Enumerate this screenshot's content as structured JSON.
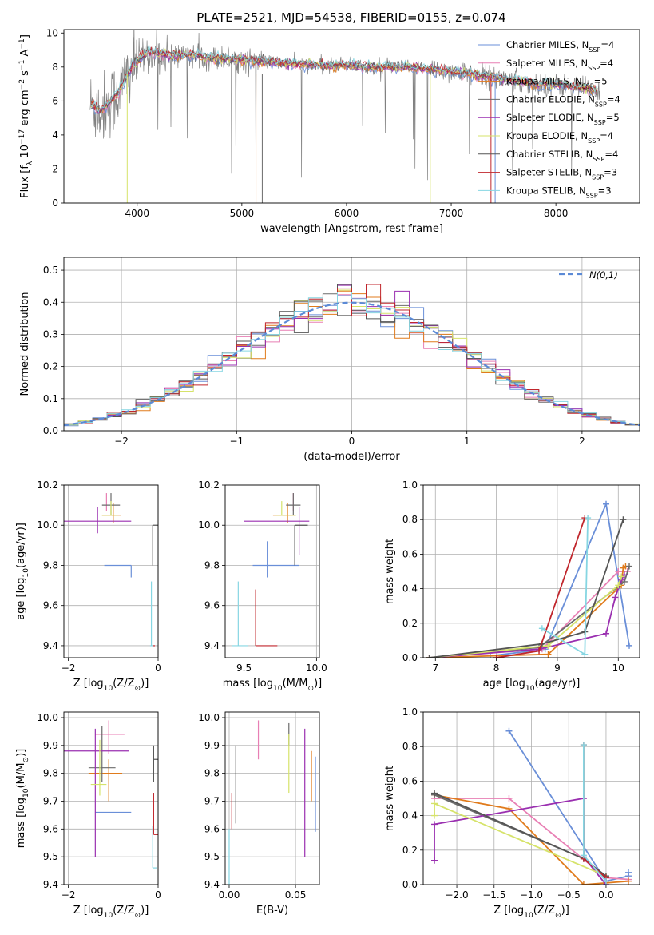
{
  "figure_title": "PLATE=2521, MJD=54538, FIBERID=0155, z=0.074",
  "colors": {
    "Chabrier MILES": "#6a8fd8",
    "Salpeter MILES": "#e87fb4",
    "Kroupa MILES": "#e07b1c",
    "Chabrier ELODIE": "#6b6b6b",
    "Salpeter ELODIE": "#9a2fb0",
    "Kroupa ELODIE": "#d6e36a",
    "Chabrier STELIB": "#555555",
    "Salpeter STELIB": "#c0262c",
    "Kroupa STELIB": "#86d6e2",
    "gray_spectrum": "#808080",
    "normal_curve": "#5b8ad6"
  },
  "chart_data": [
    {
      "id": "spectrum",
      "type": "line",
      "title": "PLATE=2521, MJD=54538, FIBERID=0155, z=0.074",
      "xlabel": "wavelength [Angstrom, rest frame]",
      "ylabel": "Flux [f_λ 10^-17 erg cm^-2 s^-1 A^-1]",
      "xlim": [
        3300,
        8800
      ],
      "ylim": [
        0,
        10.2
      ],
      "xticks": [
        4000,
        5000,
        6000,
        7000,
        8000
      ],
      "yticks": [
        0,
        2,
        4,
        6,
        8,
        10
      ],
      "grid": false,
      "legend_position": "top-right",
      "legend": [
        "Chabrier MILES, N_SSP=4",
        "Salpeter MILES, N_SSP=4",
        "Kroupa MILES, N_SSP=5",
        "Chabrier ELODIE, N_SSP=4",
        "Salpeter ELODIE, N_SSP=5",
        "Kroupa ELODIE, N_SSP=4",
        "Chabrier STELIB, N_SSP=4",
        "Salpeter STELIB, N_SSP=3",
        "Kroupa STELIB, N_SSP=3"
      ],
      "continuum_anchors": {
        "x": [
          3550,
          3650,
          3800,
          3950,
          4100,
          4300,
          4500,
          4800,
          5000,
          5200,
          5500,
          5800,
          6000,
          6300,
          6600,
          6900,
          7200,
          7500,
          7800,
          8100,
          8400
        ],
        "y": [
          5.8,
          5.4,
          6.3,
          8.0,
          8.9,
          8.7,
          8.7,
          8.5,
          8.4,
          8.3,
          8.2,
          8.1,
          8.1,
          8.0,
          8.0,
          7.8,
          7.6,
          7.3,
          7.0,
          6.9,
          6.6
        ]
      }
    },
    {
      "id": "residuals",
      "type": "histogram",
      "xlabel": "(data-model)/error",
      "ylabel": "Normed distribution",
      "xlim": [
        -2.5,
        2.5
      ],
      "ylim": [
        0,
        0.54
      ],
      "xticks": [
        -2,
        -1,
        0,
        1,
        2
      ],
      "yticks": [
        0.0,
        0.1,
        0.2,
        0.3,
        0.4,
        0.5
      ],
      "grid": true,
      "legend_position": "top-right",
      "legend": [
        "N(0,1)"
      ],
      "bin_width": 0.125
    },
    {
      "id": "age-vs-Z",
      "type": "scatter",
      "xlabel": "Z [log10(Z/Z⊙)]",
      "ylabel": "age [log10(age/yr)]",
      "xlim": [
        -2.1,
        0
      ],
      "ylim": [
        9.34,
        10.2
      ],
      "xticks": [
        -2,
        0
      ],
      "yticks": [
        9.4,
        9.6,
        9.8,
        10.0,
        10.2
      ],
      "grid": true,
      "points": [
        {
          "model": "Chabrier MILES",
          "x": -0.6,
          "xerr": [
            0.6,
            0
          ],
          "y": 9.8,
          "yerr": [
            0.06,
            0
          ]
        },
        {
          "model": "Salpeter MILES",
          "x": -1.15,
          "xerr": [
            0,
            0
          ],
          "y": 10.07,
          "yerr": [
            0,
            0.09
          ]
        },
        {
          "model": "Kroupa MILES",
          "x": -1.0,
          "xerr": [
            0.25,
            0.18
          ],
          "y": 10.05,
          "yerr": [
            0.04,
            0.06
          ]
        },
        {
          "model": "Chabrier ELODIE",
          "x": -1.05,
          "xerr": [
            0.2,
            0.2
          ],
          "y": 10.1,
          "yerr": [
            0.05,
            0.06
          ]
        },
        {
          "model": "Salpeter ELODIE",
          "x": -1.35,
          "xerr": [
            0.75,
            0.75
          ],
          "y": 10.02,
          "yerr": [
            0.06,
            0.07
          ]
        },
        {
          "model": "Kroupa ELODIE",
          "x": -1.05,
          "xerr": [
            0.2,
            0.15
          ],
          "y": 10.05,
          "yerr": [
            0,
            0.07
          ]
        },
        {
          "model": "Chabrier STELIB",
          "x": -0.12,
          "xerr": [
            0,
            0.12
          ],
          "y": 10.0,
          "yerr": [
            0.2,
            0
          ]
        },
        {
          "model": "Salpeter STELIB",
          "x": -0.1,
          "xerr": [
            0.03,
            0.03
          ],
          "y": 9.4,
          "yerr": [
            0,
            0
          ]
        },
        {
          "model": "Kroupa STELIB",
          "x": -0.15,
          "xerr": [
            0.03,
            0.03
          ],
          "y": 9.4,
          "yerr": [
            0,
            0.32
          ]
        }
      ]
    },
    {
      "id": "age-vs-mass",
      "type": "scatter",
      "xlabel": "mass [log10(M/M⊙)]",
      "ylabel": "",
      "xlim": [
        9.37,
        10.02
      ],
      "ylim": [
        9.34,
        10.2
      ],
      "xticks": [
        9.5,
        10.0
      ],
      "yticks": [
        9.4,
        9.6,
        9.8,
        10.0,
        10.2
      ],
      "grid": true,
      "points": [
        {
          "model": "Chabrier MILES",
          "x": 9.66,
          "xerr": [
            0.1,
            0.22
          ],
          "y": 9.8,
          "yerr": [
            0.06,
            0.12
          ]
        },
        {
          "model": "Salpeter MILES",
          "x": 9.84,
          "xerr": [
            0,
            0
          ],
          "y": 10.07,
          "yerr": [
            0,
            0.09
          ]
        },
        {
          "model": "Kroupa MILES",
          "x": 9.8,
          "xerr": [
            0.1,
            0.05
          ],
          "y": 10.05,
          "yerr": [
            0.04,
            0.06
          ]
        },
        {
          "model": "Chabrier ELODIE",
          "x": 9.84,
          "xerr": [
            0.05,
            0.05
          ],
          "y": 10.1,
          "yerr": [
            0.05,
            0.06
          ]
        },
        {
          "model": "Salpeter ELODIE",
          "x": 9.88,
          "xerr": [
            0.38,
            0.07
          ],
          "y": 10.02,
          "yerr": [
            0.17,
            0.07
          ]
        },
        {
          "model": "Kroupa ELODIE",
          "x": 9.76,
          "xerr": [
            0.04,
            0.1
          ],
          "y": 10.05,
          "yerr": [
            0,
            0.07
          ]
        },
        {
          "model": "Chabrier STELIB",
          "x": 9.85,
          "xerr": [
            0,
            0.09
          ],
          "y": 10.0,
          "yerr": [
            0.2,
            0
          ]
        },
        {
          "model": "Salpeter STELIB",
          "x": 9.58,
          "xerr": [
            0,
            0.15
          ],
          "y": 9.4,
          "yerr": [
            0,
            0.28
          ]
        },
        {
          "model": "Kroupa STELIB",
          "x": 9.46,
          "xerr": [
            0.04,
            0.07
          ],
          "y": 9.4,
          "yerr": [
            0,
            0.32
          ]
        }
      ]
    },
    {
      "id": "mass-weight-vs-age",
      "type": "line",
      "xlabel": "age [log10(age/yr)]",
      "ylabel": "mass weight",
      "xlim": [
        6.8,
        10.35
      ],
      "ylim": [
        0,
        1.0
      ],
      "xticks": [
        7,
        8,
        9,
        10
      ],
      "yticks": [
        0.0,
        0.2,
        0.4,
        0.6,
        0.8,
        1.0
      ],
      "grid": true,
      "series": [
        {
          "model": "Chabrier MILES",
          "x": [
            7.9,
            8.8,
            9.8,
            10.18
          ],
          "y": [
            0.01,
            0.05,
            0.89,
            0.07
          ]
        },
        {
          "model": "Salpeter MILES",
          "x": [
            6.9,
            8.75,
            10.0,
            10.15
          ],
          "y": [
            0.0,
            0.05,
            0.5,
            0.5
          ]
        },
        {
          "model": "Kroupa MILES",
          "x": [
            6.9,
            8.85,
            10.05,
            10.08,
            10.12
          ],
          "y": [
            0.0,
            0.02,
            0.42,
            0.52,
            0.53
          ]
        },
        {
          "model": "Chabrier ELODIE",
          "x": [
            6.9,
            8.7,
            10.1,
            10.18
          ],
          "y": [
            0.0,
            0.06,
            0.44,
            0.53
          ]
        },
        {
          "model": "Salpeter ELODIE",
          "x": [
            6.9,
            8.7,
            9.8,
            9.95,
            10.05,
            10.1
          ],
          "y": [
            0.0,
            0.05,
            0.14,
            0.35,
            0.45,
            0.48
          ]
        },
        {
          "model": "Kroupa ELODIE",
          "x": [
            6.9,
            8.85,
            10.0,
            10.05
          ],
          "y": [
            0.0,
            0.07,
            0.42,
            0.47
          ]
        },
        {
          "model": "Chabrier STELIB",
          "x": [
            6.9,
            8.75,
            9.45,
            10.08
          ],
          "y": [
            0.0,
            0.08,
            0.15,
            0.8
          ]
        },
        {
          "model": "Salpeter STELIB",
          "x": [
            8.0,
            8.7,
            9.45
          ],
          "y": [
            0.0,
            0.04,
            0.81
          ]
        },
        {
          "model": "Kroupa STELIB",
          "x": [
            8.75,
            9.45,
            9.5
          ],
          "y": [
            0.17,
            0.02,
            0.81
          ]
        }
      ]
    },
    {
      "id": "mass-vs-Z",
      "type": "scatter",
      "xlabel": "Z [log10(Z/Z⊙)]",
      "ylabel": "mass [log10(M/M⊙)]",
      "xlim": [
        -2.1,
        0
      ],
      "ylim": [
        9.4,
        10.02
      ],
      "xticks": [
        -2,
        0
      ],
      "yticks": [
        9.4,
        9.5,
        9.6,
        9.7,
        9.8,
        9.9,
        10.0
      ],
      "grid": true,
      "points": [
        {
          "model": "Chabrier MILES",
          "x": -0.6,
          "xerr": [
            0.8,
            0
          ],
          "y": 9.66,
          "yerr": [
            0,
            0
          ]
        },
        {
          "model": "Salpeter MILES",
          "x": -1.1,
          "xerr": [
            0.3,
            0.35
          ],
          "y": 9.94,
          "yerr": [
            0.07,
            0.05
          ]
        },
        {
          "model": "Kroupa MILES",
          "x": -1.1,
          "xerr": [
            0.45,
            0.3
          ],
          "y": 9.8,
          "yerr": [
            0.1,
            0.05
          ]
        },
        {
          "model": "Chabrier ELODIE",
          "x": -1.25,
          "xerr": [
            0.3,
            0.3
          ],
          "y": 9.82,
          "yerr": [
            0.05,
            0.15
          ]
        },
        {
          "model": "Salpeter ELODIE",
          "x": -1.4,
          "xerr": [
            0.75,
            0.75
          ],
          "y": 9.88,
          "yerr": [
            0.38,
            0.08
          ]
        },
        {
          "model": "Kroupa ELODIE",
          "x": -1.3,
          "xerr": [
            0.2,
            0.15
          ],
          "y": 9.76,
          "yerr": [
            0.04,
            0.16
          ]
        },
        {
          "model": "Chabrier STELIB",
          "x": -0.1,
          "xerr": [
            0,
            0.12
          ],
          "y": 9.85,
          "yerr": [
            0.08,
            0.05
          ]
        },
        {
          "model": "Salpeter STELIB",
          "x": -0.1,
          "xerr": [
            0,
            0.12
          ],
          "y": 9.58,
          "yerr": [
            0,
            0.15
          ]
        },
        {
          "model": "Kroupa STELIB",
          "x": -0.12,
          "xerr": [
            0,
            0.1
          ],
          "y": 9.46,
          "yerr": [
            0,
            0.15
          ]
        }
      ]
    },
    {
      "id": "mass-vs-ebv",
      "type": "scatter",
      "xlabel": "E(B-V)",
      "ylabel": "",
      "xlim": [
        -0.003,
        0.068
      ],
      "ylim": [
        9.4,
        10.02
      ],
      "xticks": [
        0.0,
        0.05
      ],
      "yticks": [
        9.4,
        9.5,
        9.6,
        9.7,
        9.8,
        9.9,
        10.0
      ],
      "grid": true,
      "points": [
        {
          "model": "Chabrier MILES",
          "x": 0.065,
          "xerr": [
            0,
            0
          ],
          "y": 9.74,
          "yerr": [
            0.15,
            0.12
          ]
        },
        {
          "model": "Salpeter MILES",
          "x": 0.022,
          "xerr": [
            0,
            0
          ],
          "y": 9.93,
          "yerr": [
            0.08,
            0.06
          ]
        },
        {
          "model": "Kroupa MILES",
          "x": 0.062,
          "xerr": [
            0,
            0
          ],
          "y": 9.8,
          "yerr": [
            0.1,
            0.08
          ]
        },
        {
          "model": "Chabrier ELODIE",
          "x": 0.045,
          "xerr": [
            0,
            0
          ],
          "y": 9.95,
          "yerr": [
            0.05,
            0.03
          ]
        },
        {
          "model": "Salpeter ELODIE",
          "x": 0.057,
          "xerr": [
            0,
            0
          ],
          "y": 9.75,
          "yerr": [
            0.25,
            0.21
          ]
        },
        {
          "model": "Kroupa ELODIE",
          "x": 0.045,
          "xerr": [
            0,
            0
          ],
          "y": 9.85,
          "yerr": [
            0.12,
            0.09
          ]
        },
        {
          "model": "Chabrier STELIB",
          "x": 0.005,
          "xerr": [
            0,
            0
          ],
          "y": 9.8,
          "yerr": [
            0.18,
            0.1
          ]
        },
        {
          "model": "Salpeter STELIB",
          "x": 0.002,
          "xerr": [
            0,
            0
          ],
          "y": 9.66,
          "yerr": [
            0.06,
            0.07
          ]
        },
        {
          "model": "Kroupa STELIB",
          "x": 0.0,
          "xerr": [
            0,
            0
          ],
          "y": 9.5,
          "yerr": [
            0.1,
            0.1
          ]
        }
      ]
    },
    {
      "id": "mass-weight-vs-Z",
      "type": "line",
      "xlabel": "Z [log10(Z/Z⊙)]",
      "ylabel": "mass weight",
      "xlim": [
        -2.45,
        0.45
      ],
      "ylim": [
        0,
        1.0
      ],
      "xticks": [
        -2.0,
        -1.5,
        -1.0,
        -0.5,
        0.0
      ],
      "yticks": [
        0.0,
        0.2,
        0.4,
        0.6,
        0.8,
        1.0
      ],
      "grid": true,
      "series": [
        {
          "model": "Chabrier MILES",
          "x": [
            -1.3,
            0.0,
            0.3,
            0.3
          ],
          "y": [
            0.89,
            0.02,
            0.05,
            0.07
          ]
        },
        {
          "model": "Salpeter MILES",
          "x": [
            -2.3,
            -1.3,
            0.0,
            0.3
          ],
          "y": [
            0.5,
            0.5,
            0.04,
            0.03
          ]
        },
        {
          "model": "Kroupa MILES",
          "x": [
            -2.3,
            -1.3,
            -0.3,
            0.3
          ],
          "y": [
            0.52,
            0.44,
            0.0,
            0.02
          ]
        },
        {
          "model": "Chabrier ELODIE",
          "x": [
            -2.3,
            -0.3,
            0.0
          ],
          "y": [
            0.52,
            0.15,
            0.04
          ]
        },
        {
          "model": "Salpeter ELODIE",
          "x": [
            -2.3,
            -2.3,
            -0.3,
            -0.3,
            0.0
          ],
          "y": [
            0.14,
            0.35,
            0.5,
            0.16,
            0.0
          ]
        },
        {
          "model": "Kroupa ELODIE",
          "x": [
            -2.3,
            -2.3,
            0.0
          ],
          "y": [
            0.4,
            0.47,
            0.05
          ]
        },
        {
          "model": "Chabrier STELIB",
          "x": [
            -2.3,
            -0.3,
            0.0
          ],
          "y": [
            0.53,
            0.15,
            0.05
          ]
        },
        {
          "model": "Salpeter STELIB",
          "x": [
            -0.3,
            -0.3,
            0.0
          ],
          "y": [
            0.81,
            0.15,
            0.04
          ]
        },
        {
          "model": "Kroupa STELIB",
          "x": [
            -0.3,
            -0.3,
            0.0
          ],
          "y": [
            0.81,
            0.17,
            0.02
          ]
        }
      ]
    }
  ]
}
